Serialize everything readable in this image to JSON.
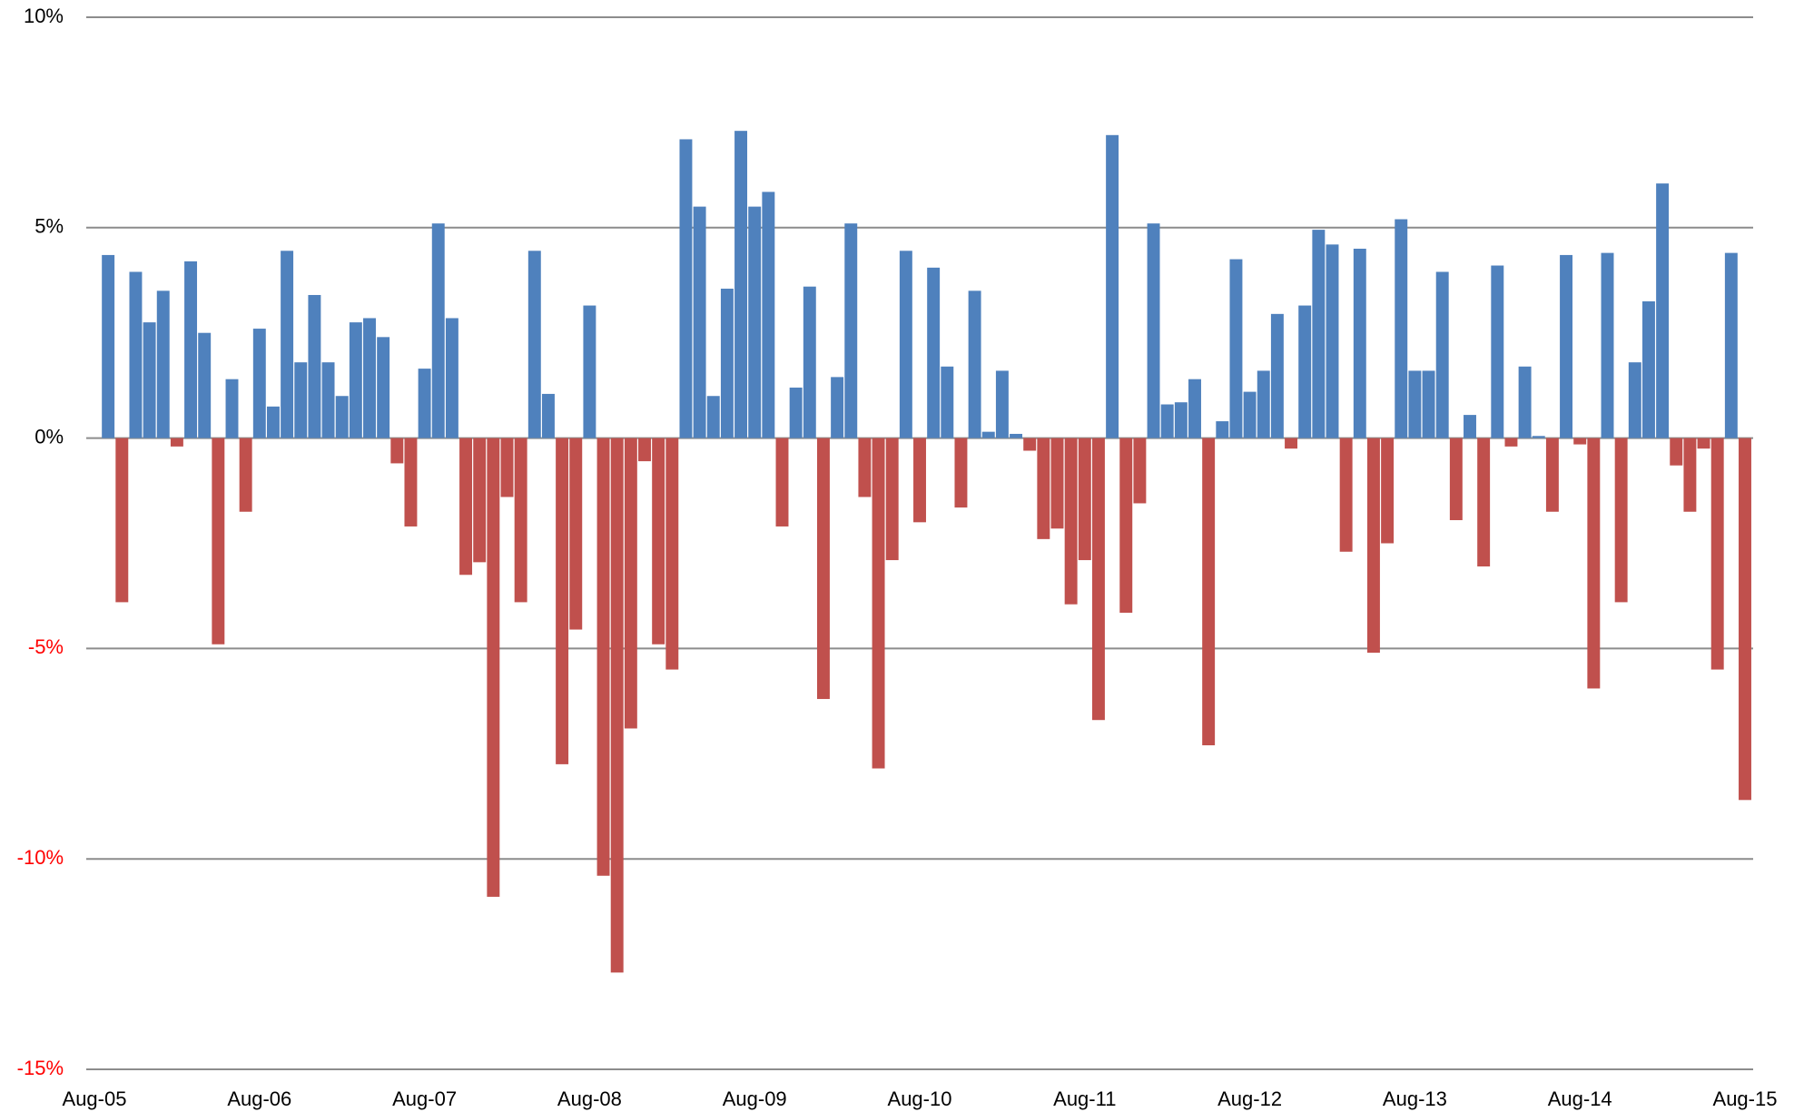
{
  "chart_data": {
    "type": "bar",
    "categories": [
      "Aug-05",
      null,
      null,
      null,
      null,
      null,
      null,
      null,
      null,
      null,
      null,
      null,
      "Aug-06",
      null,
      null,
      null,
      null,
      null,
      null,
      null,
      null,
      null,
      null,
      null,
      "Aug-07",
      null,
      null,
      null,
      null,
      null,
      null,
      null,
      null,
      null,
      null,
      null,
      "Aug-08",
      null,
      null,
      null,
      null,
      null,
      null,
      null,
      null,
      null,
      null,
      null,
      "Aug-09",
      null,
      null,
      null,
      null,
      null,
      null,
      null,
      null,
      null,
      null,
      null,
      "Aug-10",
      null,
      null,
      null,
      null,
      null,
      null,
      null,
      null,
      null,
      null,
      null,
      "Aug-11",
      null,
      null,
      null,
      null,
      null,
      null,
      null,
      null,
      null,
      null,
      null,
      "Aug-12",
      null,
      null,
      null,
      null,
      null,
      null,
      null,
      null,
      null,
      null,
      null,
      "Aug-13",
      null,
      null,
      null,
      null,
      null,
      null,
      null,
      null,
      null,
      null,
      null,
      "Aug-14",
      null,
      null,
      null,
      null,
      null,
      null,
      null,
      null,
      null,
      null,
      null,
      "Aug-15"
    ],
    "values": [
      null,
      4.35,
      -3.9,
      3.95,
      2.75,
      3.5,
      -0.2,
      4.2,
      2.5,
      -4.9,
      1.4,
      -1.75,
      2.6,
      0.75,
      4.45,
      1.8,
      3.4,
      1.8,
      1.0,
      2.75,
      2.85,
      2.4,
      -0.6,
      -2.1,
      1.65,
      5.1,
      2.85,
      -3.25,
      -2.95,
      -10.9,
      -1.4,
      -3.9,
      4.45,
      1.05,
      -7.75,
      -4.55,
      3.15,
      -10.4,
      -12.7,
      -6.9,
      -0.55,
      -4.9,
      -5.5,
      7.1,
      5.5,
      1.0,
      3.55,
      7.3,
      5.5,
      5.85,
      -2.1,
      1.2,
      3.6,
      -6.2,
      1.45,
      5.1,
      -1.4,
      -7.85,
      -2.9,
      4.45,
      -2.0,
      4.05,
      1.7,
      -1.65,
      3.5,
      0.15,
      1.6,
      0.1,
      -0.3,
      -2.4,
      -2.15,
      -3.95,
      -2.9,
      -6.7,
      7.2,
      -4.15,
      -1.55,
      5.1,
      0.8,
      0.85,
      1.4,
      -7.3,
      0.4,
      4.25,
      1.1,
      1.6,
      2.95,
      -0.25,
      3.15,
      4.95,
      4.6,
      -2.7,
      4.5,
      -5.1,
      -2.5,
      5.2,
      1.6,
      1.6,
      3.95,
      -1.95,
      0.55,
      -3.05,
      4.1,
      -0.2,
      1.7,
      0.05,
      -1.75,
      4.35,
      -0.15,
      -5.95,
      4.4,
      -3.9,
      1.8,
      3.25,
      6.05,
      -0.65,
      -1.75,
      -0.25,
      -5.5,
      4.4,
      -8.6
    ],
    "color": "#4f81bd",
    "negative_color": "#c0504d",
    "negative_tick_label_color": "#ff0000",
    "ylim": [
      -15,
      10
    ],
    "yticks": [
      {
        "value": -15,
        "label": "-15%"
      },
      {
        "value": -10,
        "label": "-10%"
      },
      {
        "value": -5,
        "label": "-5%"
      },
      {
        "value": 0,
        "label": "0%"
      },
      {
        "value": 5,
        "label": "5%"
      },
      {
        "value": 10,
        "label": "10%"
      }
    ],
    "grid": true
  }
}
